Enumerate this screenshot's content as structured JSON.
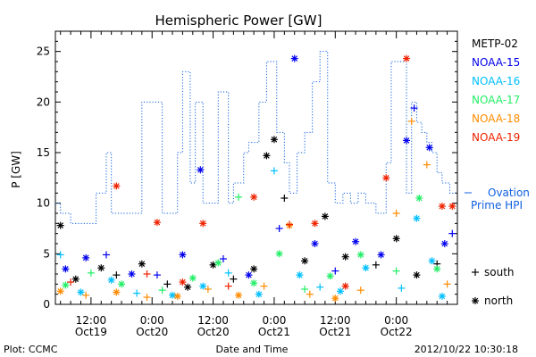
{
  "chart_data": {
    "type": "scatter",
    "title": "Hemispheric Power [GW]",
    "ylabel": "P [GW]",
    "xlabel": "Date and Time",
    "ylim": [
      0,
      27
    ],
    "xlim": [
      "2012-10-19 05:00",
      "2012-10-22 12:00"
    ],
    "y_ticks": [
      0,
      5,
      10,
      15,
      20,
      25
    ],
    "x_ticks": [
      {
        "t": "2012-10-19 12:00",
        "time": "12:00",
        "date": "Oct19"
      },
      {
        "t": "2012-10-20 00:00",
        "time": "0:00",
        "date": "Oct20"
      },
      {
        "t": "2012-10-20 12:00",
        "time": "12:00",
        "date": "Oct20"
      },
      {
        "t": "2012-10-21 00:00",
        "time": "0:00",
        "date": "Oct21"
      },
      {
        "t": "2012-10-21 12:00",
        "time": "12:00",
        "date": "Oct21"
      },
      {
        "t": "2012-10-22 00:00",
        "time": "0:00",
        "date": "Oct22"
      }
    ],
    "grid": false,
    "legend_position": "right",
    "series": [
      {
        "name": "METP-02",
        "color": "#000000",
        "points": [
          {
            "x": "2012-10-19 06:00",
            "y": 7.8,
            "m": "*"
          },
          {
            "x": "2012-10-19 09:00",
            "y": 2.5,
            "m": "*"
          },
          {
            "x": "2012-10-19 14:00",
            "y": 3.6,
            "m": "*"
          },
          {
            "x": "2012-10-19 17:00",
            "y": 2.9,
            "m": "+"
          },
          {
            "x": "2012-10-19 22:00",
            "y": 4.0,
            "m": "*"
          },
          {
            "x": "2012-10-20 03:00",
            "y": 2.0,
            "m": "+"
          },
          {
            "x": "2012-10-20 07:00",
            "y": 1.7,
            "m": "*"
          },
          {
            "x": "2012-10-20 12:00",
            "y": 3.9,
            "m": "*"
          },
          {
            "x": "2012-10-20 16:00",
            "y": 2.5,
            "m": "+"
          },
          {
            "x": "2012-10-20 20:00",
            "y": 3.5,
            "m": "*"
          },
          {
            "x": "2012-10-20 22:30",
            "y": 14.7,
            "m": "*"
          },
          {
            "x": "2012-10-21 00:00",
            "y": 16.3,
            "m": "*"
          },
          {
            "x": "2012-10-21 02:00",
            "y": 10.5,
            "m": "+"
          },
          {
            "x": "2012-10-21 06:00",
            "y": 4.3,
            "m": "*"
          },
          {
            "x": "2012-10-21 10:00",
            "y": 8.7,
            "m": "*"
          },
          {
            "x": "2012-10-21 14:00",
            "y": 4.7,
            "m": "*"
          },
          {
            "x": "2012-10-21 20:00",
            "y": 3.9,
            "m": "+"
          },
          {
            "x": "2012-10-22 00:00",
            "y": 6.5,
            "m": "*"
          },
          {
            "x": "2012-10-22 04:00",
            "y": 2.9,
            "m": "*"
          },
          {
            "x": "2012-10-22 08:00",
            "y": 4.0,
            "m": "+"
          }
        ]
      },
      {
        "name": "NOAA-15",
        "color": "#0000ee",
        "points": [
          {
            "x": "2012-10-19 07:00",
            "y": 3.5,
            "m": "*"
          },
          {
            "x": "2012-10-19 11:00",
            "y": 4.6,
            "m": "*"
          },
          {
            "x": "2012-10-19 15:00",
            "y": 4.9,
            "m": "+"
          },
          {
            "x": "2012-10-19 20:00",
            "y": 3.0,
            "m": "*"
          },
          {
            "x": "2012-10-20 01:00",
            "y": 2.9,
            "m": "+"
          },
          {
            "x": "2012-10-20 06:00",
            "y": 4.9,
            "m": "*"
          },
          {
            "x": "2012-10-20 09:30",
            "y": 13.3,
            "m": "*"
          },
          {
            "x": "2012-10-20 14:00",
            "y": 4.5,
            "m": "+"
          },
          {
            "x": "2012-10-20 19:00",
            "y": 2.9,
            "m": "*"
          },
          {
            "x": "2012-10-21 01:00",
            "y": 7.5,
            "m": "+"
          },
          {
            "x": "2012-10-21 04:00",
            "y": 24.3,
            "m": "*"
          },
          {
            "x": "2012-10-21 08:00",
            "y": 6.0,
            "m": "*"
          },
          {
            "x": "2012-10-21 12:00",
            "y": 3.3,
            "m": "+"
          },
          {
            "x": "2012-10-21 16:00",
            "y": 6.2,
            "m": "*"
          },
          {
            "x": "2012-10-21 21:00",
            "y": 4.9,
            "m": "*"
          },
          {
            "x": "2012-10-22 02:00",
            "y": 16.2,
            "m": "*"
          },
          {
            "x": "2012-10-22 03:30",
            "y": 19.4,
            "m": "+"
          },
          {
            "x": "2012-10-22 06:30",
            "y": 15.5,
            "m": "*"
          },
          {
            "x": "2012-10-22 09:30",
            "y": 6.0,
            "m": "*"
          },
          {
            "x": "2012-10-22 11:00",
            "y": 7.0,
            "m": "+"
          }
        ]
      },
      {
        "name": "NOAA-16",
        "color": "#00bfff",
        "points": [
          {
            "x": "2012-10-19 06:00",
            "y": 4.9,
            "m": "+"
          },
          {
            "x": "2012-10-19 10:00",
            "y": 1.2,
            "m": "*"
          },
          {
            "x": "2012-10-19 16:00",
            "y": 2.4,
            "m": "*"
          },
          {
            "x": "2012-10-19 21:00",
            "y": 1.1,
            "m": "+"
          },
          {
            "x": "2012-10-20 04:00",
            "y": 0.9,
            "m": "*"
          },
          {
            "x": "2012-10-20 10:00",
            "y": 1.8,
            "m": "*"
          },
          {
            "x": "2012-10-20 15:00",
            "y": 3.1,
            "m": "+"
          },
          {
            "x": "2012-10-20 21:00",
            "y": 1.0,
            "m": "*"
          },
          {
            "x": "2012-10-21 00:00",
            "y": 13.2,
            "m": "+"
          },
          {
            "x": "2012-10-21 05:00",
            "y": 2.9,
            "m": "*"
          },
          {
            "x": "2012-10-21 09:00",
            "y": 1.7,
            "m": "+"
          },
          {
            "x": "2012-10-21 13:00",
            "y": 1.3,
            "m": "*"
          },
          {
            "x": "2012-10-21 18:00",
            "y": 3.6,
            "m": "*"
          },
          {
            "x": "2012-10-22 01:00",
            "y": 1.6,
            "m": "+"
          },
          {
            "x": "2012-10-22 04:00",
            "y": 8.5,
            "m": "*"
          },
          {
            "x": "2012-10-22 07:00",
            "y": 4.3,
            "m": "*"
          },
          {
            "x": "2012-10-22 09:00",
            "y": 0.8,
            "m": "*"
          }
        ]
      },
      {
        "name": "NOAA-17",
        "color": "#22ee66",
        "points": [
          {
            "x": "2012-10-19 07:00",
            "y": 1.9,
            "m": "*"
          },
          {
            "x": "2012-10-19 12:00",
            "y": 3.1,
            "m": "+"
          },
          {
            "x": "2012-10-19 18:00",
            "y": 2.0,
            "m": "*"
          },
          {
            "x": "2012-10-20 02:00",
            "y": 1.4,
            "m": "+"
          },
          {
            "x": "2012-10-20 08:00",
            "y": 2.6,
            "m": "*"
          },
          {
            "x": "2012-10-20 13:00",
            "y": 4.1,
            "m": "*"
          },
          {
            "x": "2012-10-20 17:00",
            "y": 10.6,
            "m": "+"
          },
          {
            "x": "2012-10-20 20:00",
            "y": 2.1,
            "m": "*"
          },
          {
            "x": "2012-10-21 01:00",
            "y": 5.0,
            "m": "*"
          },
          {
            "x": "2012-10-21 06:00",
            "y": 1.5,
            "m": "+"
          },
          {
            "x": "2012-10-21 11:00",
            "y": 2.8,
            "m": "*"
          },
          {
            "x": "2012-10-21 17:00",
            "y": 4.9,
            "m": "*"
          },
          {
            "x": "2012-10-22 00:00",
            "y": 3.3,
            "m": "+"
          },
          {
            "x": "2012-10-22 04:30",
            "y": 10.5,
            "m": "*"
          },
          {
            "x": "2012-10-22 08:00",
            "y": 3.5,
            "m": "*"
          }
        ]
      },
      {
        "name": "NOAA-18",
        "color": "#ff8c00",
        "points": [
          {
            "x": "2012-10-19 06:00",
            "y": 1.3,
            "m": "*"
          },
          {
            "x": "2012-10-19 11:00",
            "y": 0.9,
            "m": "+"
          },
          {
            "x": "2012-10-19 17:00",
            "y": 1.2,
            "m": "*"
          },
          {
            "x": "2012-10-19 23:00",
            "y": 0.7,
            "m": "+"
          },
          {
            "x": "2012-10-20 05:00",
            "y": 0.8,
            "m": "*"
          },
          {
            "x": "2012-10-20 11:00",
            "y": 1.5,
            "m": "+"
          },
          {
            "x": "2012-10-20 17:00",
            "y": 0.9,
            "m": "*"
          },
          {
            "x": "2012-10-20 22:00",
            "y": 1.8,
            "m": "+"
          },
          {
            "x": "2012-10-21 03:00",
            "y": 7.8,
            "m": "*"
          },
          {
            "x": "2012-10-21 07:00",
            "y": 1.0,
            "m": "+"
          },
          {
            "x": "2012-10-21 12:00",
            "y": 0.6,
            "m": "*"
          },
          {
            "x": "2012-10-21 17:00",
            "y": 1.4,
            "m": "+"
          },
          {
            "x": "2012-10-22 00:00",
            "y": 9.0,
            "m": "+"
          },
          {
            "x": "2012-10-22 03:00",
            "y": 18.1,
            "m": "+"
          },
          {
            "x": "2012-10-22 06:00",
            "y": 13.8,
            "m": "+"
          },
          {
            "x": "2012-10-22 10:00",
            "y": 2.0,
            "m": "+"
          }
        ]
      },
      {
        "name": "NOAA-19",
        "color": "#ee2200",
        "points": [
          {
            "x": "2012-10-19 08:00",
            "y": 2.2,
            "m": "+"
          },
          {
            "x": "2012-10-19 17:00",
            "y": 11.7,
            "m": "*"
          },
          {
            "x": "2012-10-19 23:00",
            "y": 3.0,
            "m": "+"
          },
          {
            "x": "2012-10-20 01:00",
            "y": 8.1,
            "m": "*"
          },
          {
            "x": "2012-10-20 06:00",
            "y": 2.2,
            "m": "*"
          },
          {
            "x": "2012-10-20 10:00",
            "y": 8.0,
            "m": "*"
          },
          {
            "x": "2012-10-20 15:00",
            "y": 1.8,
            "m": "+"
          },
          {
            "x": "2012-10-20 20:00",
            "y": 10.6,
            "m": "*"
          },
          {
            "x": "2012-10-21 03:00",
            "y": 7.9,
            "m": "+"
          },
          {
            "x": "2012-10-21 08:00",
            "y": 8.0,
            "m": "*"
          },
          {
            "x": "2012-10-21 14:00",
            "y": 1.8,
            "m": "*"
          },
          {
            "x": "2012-10-21 22:00",
            "y": 12.5,
            "m": "*"
          },
          {
            "x": "2012-10-22 02:00",
            "y": 24.3,
            "m": "*"
          },
          {
            "x": "2012-10-22 09:00",
            "y": 9.7,
            "m": "*"
          },
          {
            "x": "2012-10-22 11:00",
            "y": 9.7,
            "m": "*"
          }
        ]
      }
    ],
    "ovation": {
      "name": "Ovation Prime HPI",
      "line1": "Ovation",
      "line2": "Prime HPI",
      "color": "#1060e0",
      "steps": [
        {
          "x": "2012-10-19 05:00",
          "y": 10
        },
        {
          "x": "2012-10-19 06:00",
          "y": 9
        },
        {
          "x": "2012-10-19 08:00",
          "y": 8
        },
        {
          "x": "2012-10-19 13:00",
          "y": 11
        },
        {
          "x": "2012-10-19 15:00",
          "y": 15
        },
        {
          "x": "2012-10-19 16:00",
          "y": 9
        },
        {
          "x": "2012-10-19 22:00",
          "y": 20
        },
        {
          "x": "2012-10-20 02:00",
          "y": 9
        },
        {
          "x": "2012-10-20 05:00",
          "y": 15
        },
        {
          "x": "2012-10-20 06:00",
          "y": 23
        },
        {
          "x": "2012-10-20 07:30",
          "y": 12
        },
        {
          "x": "2012-10-20 08:30",
          "y": 20
        },
        {
          "x": "2012-10-20 10:00",
          "y": 10
        },
        {
          "x": "2012-10-20 13:00",
          "y": 21
        },
        {
          "x": "2012-10-20 15:00",
          "y": 10
        },
        {
          "x": "2012-10-20 16:00",
          "y": 12
        },
        {
          "x": "2012-10-20 18:00",
          "y": 15
        },
        {
          "x": "2012-10-20 19:00",
          "y": 16
        },
        {
          "x": "2012-10-20 21:00",
          "y": 20
        },
        {
          "x": "2012-10-20 22:30",
          "y": 24
        },
        {
          "x": "2012-10-21 00:30",
          "y": 17
        },
        {
          "x": "2012-10-21 02:00",
          "y": 14
        },
        {
          "x": "2012-10-21 03:00",
          "y": 11
        },
        {
          "x": "2012-10-21 04:30",
          "y": 15
        },
        {
          "x": "2012-10-21 06:00",
          "y": 17
        },
        {
          "x": "2012-10-21 07:30",
          "y": 22
        },
        {
          "x": "2012-10-21 09:00",
          "y": 25
        },
        {
          "x": "2012-10-21 10:30",
          "y": 12
        },
        {
          "x": "2012-10-21 12:00",
          "y": 10
        },
        {
          "x": "2012-10-21 13:30",
          "y": 11
        },
        {
          "x": "2012-10-21 15:00",
          "y": 10
        },
        {
          "x": "2012-10-21 16:30",
          "y": 11
        },
        {
          "x": "2012-10-21 18:00",
          "y": 10
        },
        {
          "x": "2012-10-21 20:00",
          "y": 9
        },
        {
          "x": "2012-10-21 22:00",
          "y": 14
        },
        {
          "x": "2012-10-21 23:00",
          "y": 24
        },
        {
          "x": "2012-10-22 01:30",
          "y": 24
        },
        {
          "x": "2012-10-22 02:00",
          "y": 11
        },
        {
          "x": "2012-10-22 03:00",
          "y": 20
        },
        {
          "x": "2012-10-22 04:00",
          "y": 18
        },
        {
          "x": "2012-10-22 05:00",
          "y": 17
        },
        {
          "x": "2012-10-22 06:00",
          "y": 16
        },
        {
          "x": "2012-10-22 07:00",
          "y": 15
        },
        {
          "x": "2012-10-22 08:00",
          "y": 13
        },
        {
          "x": "2012-10-22 09:00",
          "y": 12
        },
        {
          "x": "2012-10-22 10:30",
          "y": 11
        },
        {
          "x": "2012-10-22 12:00",
          "y": 11
        }
      ]
    },
    "marker_legend": [
      {
        "m": "+",
        "label": "south"
      },
      {
        "m": "*",
        "label": "north"
      }
    ]
  },
  "footer": {
    "plot_label": "Plot: CCMC",
    "xlabel": "Date and Time",
    "timestamp": "2012/10/22 10:30:18"
  }
}
